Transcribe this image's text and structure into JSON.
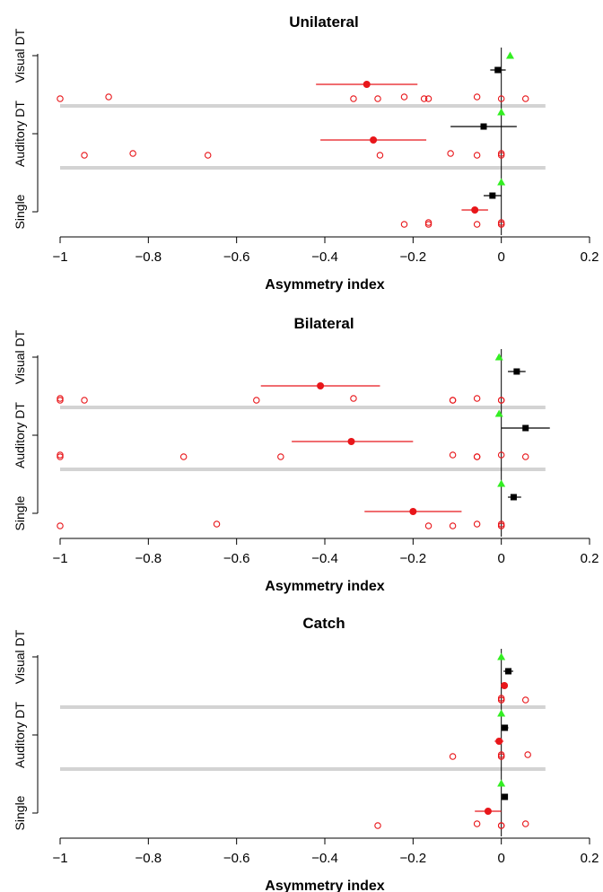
{
  "chart_data": [
    {
      "type": "scatter",
      "title": "Unilateral",
      "xlabel": "Asymmetry index",
      "xlim": [
        -1,
        0.2
      ],
      "xticks": [
        "−1",
        "−0.8",
        "−0.6",
        "−0.4",
        "−0.2",
        "0",
        "0.2"
      ],
      "categories": [
        "Single",
        "Auditory DT",
        "Visual DT"
      ],
      "rows": [
        {
          "category": "Single",
          "green": 0.0,
          "black": {
            "mean": -0.02,
            "lo": -0.04,
            "hi": 0.0
          },
          "red": {
            "mean": -0.06,
            "lo": -0.09,
            "hi": -0.03
          },
          "individual": [
            -0.22,
            -0.165,
            -0.165,
            -0.055,
            0.0,
            0.0,
            0.0
          ]
        },
        {
          "category": "Auditory DT",
          "green": 0.0,
          "black": {
            "mean": -0.04,
            "lo": -0.115,
            "hi": 0.035
          },
          "red": {
            "mean": -0.29,
            "lo": -0.41,
            "hi": -0.17
          },
          "individual": [
            -0.945,
            -0.835,
            -0.665,
            -0.275,
            -0.115,
            -0.055,
            0.0,
            0.0
          ]
        },
        {
          "category": "Visual DT",
          "green": 0.02,
          "black": {
            "mean": -0.008,
            "lo": -0.025,
            "hi": 0.01
          },
          "red": {
            "mean": -0.305,
            "lo": -0.42,
            "hi": -0.19
          },
          "individual": [
            -1.0,
            -0.89,
            -0.335,
            -0.28,
            -0.22,
            -0.175,
            -0.165,
            -0.055,
            0.0,
            0.055
          ]
        }
      ]
    },
    {
      "type": "scatter",
      "title": "Bilateral",
      "xlabel": "Asymmetry index",
      "xlim": [
        -1,
        0.2
      ],
      "xticks": [
        "−1",
        "−0.8",
        "−0.6",
        "−0.4",
        "−0.2",
        "0",
        "0.2"
      ],
      "categories": [
        "Single",
        "Auditory DT",
        "Visual DT"
      ],
      "rows": [
        {
          "category": "Single",
          "green": 0.0,
          "black": {
            "mean": 0.028,
            "lo": 0.015,
            "hi": 0.045
          },
          "red": {
            "mean": -0.2,
            "lo": -0.31,
            "hi": -0.09
          },
          "individual": [
            -1.0,
            -0.645,
            -0.165,
            -0.11,
            -0.055,
            0.0,
            0.0,
            0.0
          ]
        },
        {
          "category": "Auditory DT",
          "green": -0.005,
          "black": {
            "mean": 0.055,
            "lo": 0.0,
            "hi": 0.11
          },
          "red": {
            "mean": -0.34,
            "lo": -0.475,
            "hi": -0.2
          },
          "individual": [
            -1.0,
            -1.0,
            -0.72,
            -0.5,
            -0.11,
            -0.055,
            -0.055,
            0.0,
            0.055
          ]
        },
        {
          "category": "Visual DT",
          "green": -0.005,
          "black": {
            "mean": 0.035,
            "lo": 0.015,
            "hi": 0.055
          },
          "red": {
            "mean": -0.41,
            "lo": -0.545,
            "hi": -0.275
          },
          "individual": [
            -1.0,
            -1.0,
            -0.945,
            -0.555,
            -0.335,
            -0.11,
            -0.11,
            -0.055,
            0.0,
            0.0
          ]
        }
      ]
    },
    {
      "type": "scatter",
      "title": "Catch",
      "xlabel": "Asymmetry index",
      "xlim": [
        -1,
        0.2
      ],
      "xticks": [
        "−1",
        "−0.8",
        "−0.6",
        "−0.4",
        "−0.2",
        "0",
        "0.2"
      ],
      "categories": [
        "Single",
        "Auditory DT",
        "Visual DT"
      ],
      "rows": [
        {
          "category": "Single",
          "green": 0.0,
          "black": {
            "mean": 0.008,
            "lo": 0.003,
            "hi": 0.013
          },
          "red": {
            "mean": -0.03,
            "lo": -0.06,
            "hi": 0.0
          },
          "individual": [
            -0.28,
            -0.055,
            0.0,
            0.0,
            0.055
          ]
        },
        {
          "category": "Auditory DT",
          "green": 0.0,
          "black": {
            "mean": 0.008,
            "lo": 0.0,
            "hi": 0.016
          },
          "red": {
            "mean": -0.005,
            "lo": -0.015,
            "hi": 0.005
          },
          "individual": [
            -0.11,
            0.0,
            0.0,
            0.0,
            0.06
          ]
        },
        {
          "category": "Visual DT",
          "green": 0.0,
          "black": {
            "mean": 0.016,
            "lo": 0.005,
            "hi": 0.027
          },
          "red": {
            "mean": 0.007,
            "lo": 0.002,
            "hi": 0.012
          },
          "individual": [
            0.0,
            0.0,
            0.0,
            0.055
          ]
        }
      ]
    }
  ]
}
